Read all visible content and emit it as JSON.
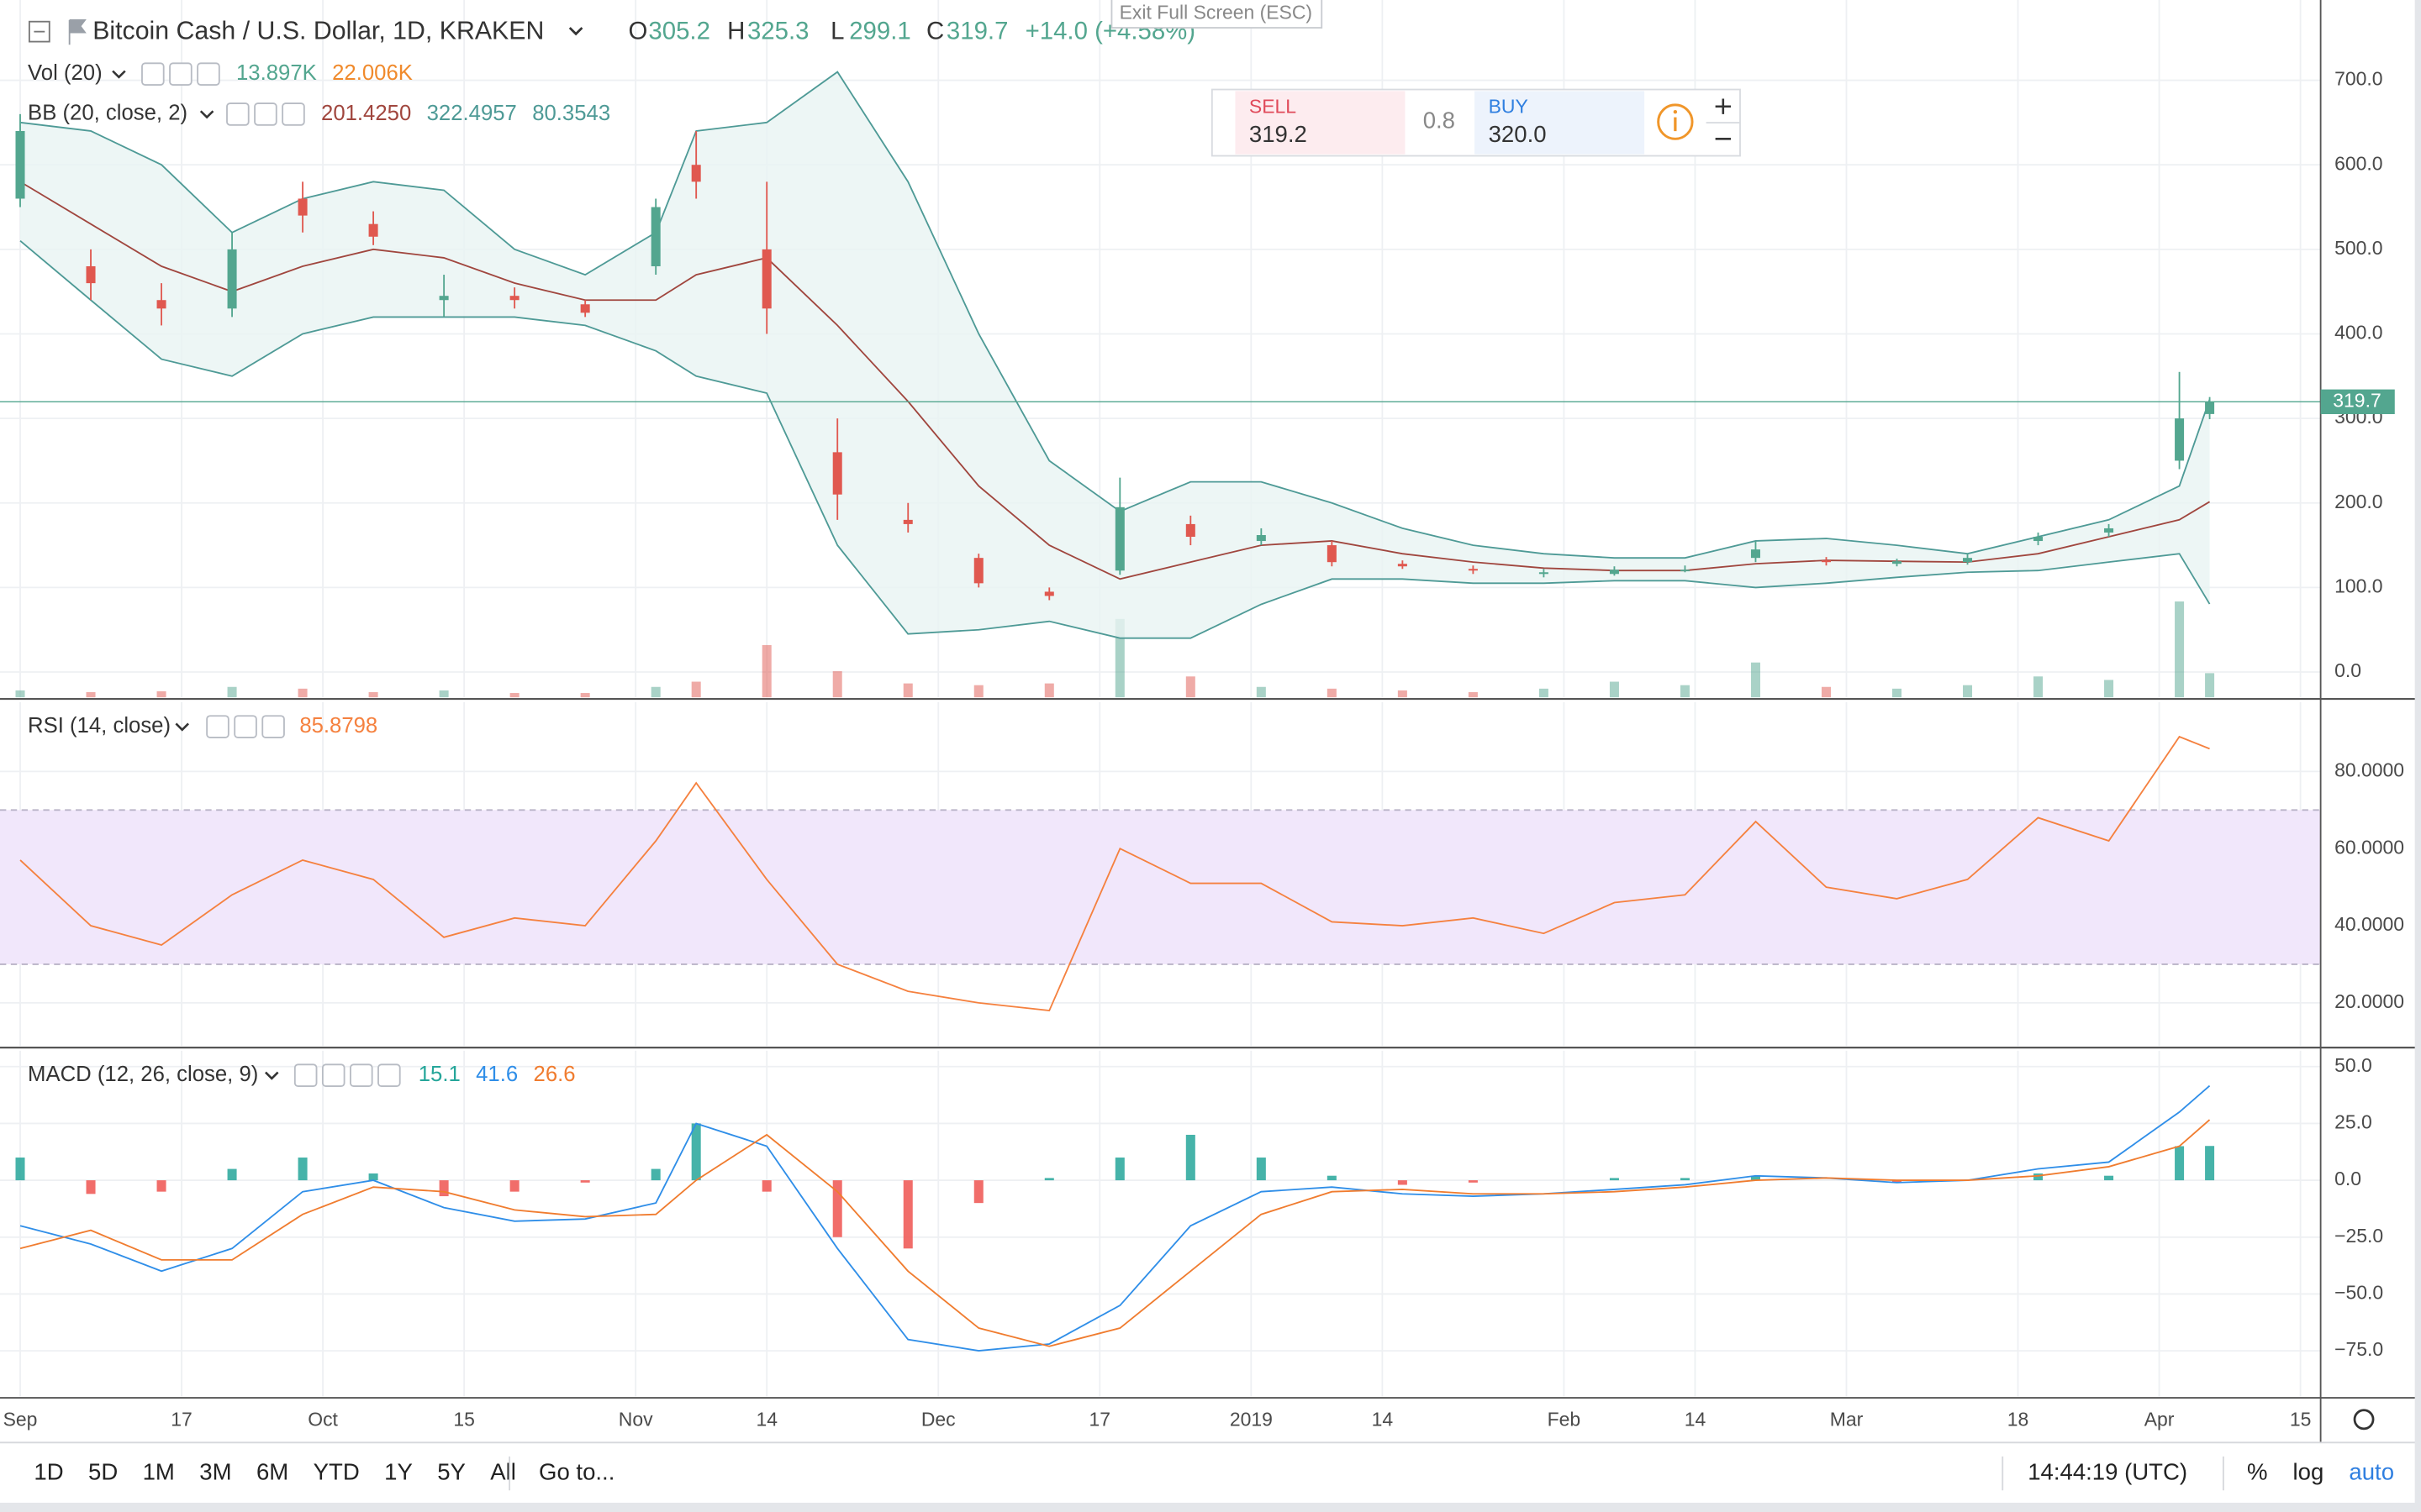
{
  "header": {
    "title": "Bitcoin Cash / U.S. Dollar, 1D, KRAKEN",
    "ohlc": [
      {
        "label": "O",
        "value": 305.2
      },
      {
        "label": "H",
        "value": 325.3
      },
      {
        "label": "L",
        "value": 299.1
      },
      {
        "label": "C",
        "value": 319.7
      }
    ],
    "change": "+14.0 (+4.58%)"
  },
  "exit_fullscreen": "Exit Full Screen (ESC)",
  "trade_widget": {
    "sell_label": "SELL",
    "sell_price": 319.2,
    "spread": 0.8,
    "buy_label": "BUY",
    "buy_price": {
      "value": 320,
      "label": "320.0"
    }
  },
  "chart_data": [
    {
      "type": "candlestick",
      "x": [
        "2018-09-01",
        "2018-09-08",
        "2018-09-15",
        "2018-09-22",
        "2018-09-29",
        "2018-10-06",
        "2018-10-13",
        "2018-10-20",
        "2018-10-27",
        "2018-11-03",
        "2018-11-07",
        "2018-11-14",
        "2018-11-21",
        "2018-11-28",
        "2018-12-05",
        "2018-12-12",
        "2018-12-19",
        "2018-12-26",
        "2019-01-02",
        "2019-01-09",
        "2019-01-16",
        "2019-01-23",
        "2019-01-30",
        "2019-02-06",
        "2019-02-13",
        "2019-02-20",
        "2019-02-27",
        "2019-03-06",
        "2019-03-13",
        "2019-03-20",
        "2019-03-27",
        "2019-04-03",
        "2019-04-06"
      ],
      "open": [
        560,
        480,
        440,
        430,
        560,
        530,
        440,
        445,
        435,
        480,
        600,
        500,
        260,
        180,
        135,
        95,
        120,
        175,
        155,
        150,
        128,
        122,
        116,
        116,
        120,
        135,
        132,
        128,
        130,
        155,
        165,
        250,
        305.2
      ],
      "high": [
        660,
        500,
        460,
        520,
        580,
        545,
        470,
        455,
        440,
        560,
        640,
        580,
        300,
        200,
        140,
        100,
        230,
        185,
        170,
        155,
        132,
        126,
        122,
        125,
        126,
        155,
        136,
        134,
        140,
        165,
        175,
        355,
        325.3
      ],
      "low": [
        550,
        440,
        410,
        420,
        520,
        505,
        420,
        430,
        420,
        470,
        560,
        400,
        180,
        165,
        100,
        85,
        115,
        150,
        150,
        125,
        122,
        116,
        112,
        114,
        118,
        130,
        126,
        125,
        127,
        150,
        160,
        240,
        299.1
      ],
      "close": [
        640,
        460,
        430,
        500,
        540,
        515,
        445,
        440,
        425,
        550,
        580,
        430,
        210,
        175,
        105,
        90,
        195,
        160,
        162,
        130,
        125,
        120,
        118,
        121,
        121,
        145,
        130,
        131,
        135,
        160,
        170,
        300,
        319.7
      ],
      "up_color": "#53a68f",
      "down_color": "#e0584f",
      "ylim": [
        -30,
        795
      ],
      "yticks": [
        {
          "value": 0,
          "label": "0.0"
        },
        {
          "value": 100,
          "label": "100.0"
        },
        {
          "value": 200,
          "label": "200.0"
        },
        {
          "value": 300,
          "label": "300.0"
        },
        {
          "value": 400,
          "label": "400.0"
        },
        {
          "value": 500,
          "label": "500.0"
        },
        {
          "value": 600,
          "label": "600.0"
        },
        {
          "value": 700,
          "label": "700.0"
        }
      ],
      "xlim": [
        "2018-08-30",
        "2019-04-17"
      ],
      "last_price": 319.7,
      "volume": {
        "name": "Vol (20)",
        "values": [
          4000,
          3000,
          3500,
          6000,
          5000,
          3000,
          4000,
          2500,
          2500,
          6000,
          9000,
          30000,
          15000,
          8000,
          7000,
          8000,
          45000,
          12000,
          6000,
          5000,
          4000,
          3000,
          5000,
          9000,
          7000,
          20000,
          6000,
          5000,
          7000,
          12000,
          10000,
          55000,
          13897
        ],
        "ylim": [
          0,
          400000
        ],
        "legend": [
          {
            "value": 13897,
            "label": "13.897K"
          },
          {
            "value": 22006,
            "label": "22.006K"
          }
        ],
        "legend_colors": [
          "#53a68f",
          "#f08a2c"
        ]
      },
      "bollinger": {
        "name": "BB (20, close, 2)",
        "basis": [
          580,
          530,
          480,
          450,
          480,
          500,
          490,
          460,
          440,
          440,
          470,
          490,
          410,
          320,
          220,
          150,
          110,
          130,
          150,
          155,
          140,
          130,
          123,
          120,
          120,
          128,
          132,
          131,
          130,
          140,
          160,
          180,
          201.425
        ],
        "upper": [
          650,
          640,
          600,
          520,
          560,
          580,
          570,
          500,
          470,
          520,
          640,
          650,
          710,
          580,
          400,
          250,
          190,
          225,
          225,
          200,
          170,
          150,
          140,
          135,
          135,
          155,
          158,
          150,
          140,
          160,
          180,
          220,
          322.4957
        ],
        "lower": [
          510,
          440,
          370,
          350,
          400,
          420,
          420,
          420,
          410,
          380,
          350,
          330,
          150,
          45,
          50,
          60,
          40,
          40,
          80,
          110,
          110,
          105,
          105,
          108,
          108,
          100,
          105,
          112,
          118,
          120,
          130,
          140,
          80.3543
        ],
        "color": "#4e9a96",
        "basis_color": "#a0463e",
        "fill": "#e9f4f2",
        "legend": [
          {
            "value": 201.425,
            "label": "201.4250"
          },
          322.4957,
          80.3543
        ],
        "legend_colors": [
          "#a0463e",
          "#4e9a96",
          "#4e9a96"
        ]
      }
    },
    {
      "type": "line",
      "x": [
        "2018-09-01",
        "2018-09-08",
        "2018-09-15",
        "2018-09-22",
        "2018-09-29",
        "2018-10-06",
        "2018-10-13",
        "2018-10-20",
        "2018-10-27",
        "2018-11-03",
        "2018-11-07",
        "2018-11-14",
        "2018-11-21",
        "2018-11-28",
        "2018-12-05",
        "2018-12-12",
        "2018-12-19",
        "2018-12-26",
        "2019-01-02",
        "2019-01-09",
        "2019-01-16",
        "2019-01-23",
        "2019-01-30",
        "2019-02-06",
        "2019-02-13",
        "2019-02-20",
        "2019-02-27",
        "2019-03-06",
        "2019-03-13",
        "2019-03-20",
        "2019-03-27",
        "2019-04-03",
        "2019-04-06"
      ],
      "series": [
        {
          "name": "RSI (14, close)",
          "color": "#f5813f",
          "values": [
            57,
            40,
            35,
            48,
            57,
            52,
            37,
            42,
            40,
            62,
            77,
            52,
            30,
            23,
            20,
            18,
            60,
            51,
            51,
            41,
            40,
            42,
            38,
            46,
            48,
            67,
            50,
            47,
            52,
            68,
            62,
            89,
            85.8798
          ]
        }
      ],
      "legend": [
        85.8798
      ],
      "band": [
        30,
        70
      ],
      "band_color": "#f1e7fb",
      "ylim": [
        8.8,
        98
      ],
      "yticks": [
        {
          "value": 20,
          "label": "20.0000"
        },
        {
          "value": 40,
          "label": "40.0000"
        },
        {
          "value": 60,
          "label": "60.0000"
        },
        {
          "value": 80,
          "label": "80.0000"
        }
      ],
      "xlim": [
        "2018-08-30",
        "2019-04-17"
      ]
    },
    {
      "type": "combo",
      "name": "MACD (12, 26, close, 9)",
      "x": [
        "2018-09-01",
        "2018-09-08",
        "2018-09-15",
        "2018-09-22",
        "2018-09-29",
        "2018-10-06",
        "2018-10-13",
        "2018-10-20",
        "2018-10-27",
        "2018-11-03",
        "2018-11-07",
        "2018-11-14",
        "2018-11-21",
        "2018-11-28",
        "2018-12-05",
        "2018-12-12",
        "2018-12-19",
        "2018-12-26",
        "2019-01-02",
        "2019-01-09",
        "2019-01-16",
        "2019-01-23",
        "2019-01-30",
        "2019-02-06",
        "2019-02-13",
        "2019-02-20",
        "2019-02-27",
        "2019-03-06",
        "2019-03-13",
        "2019-03-20",
        "2019-03-27",
        "2019-04-03",
        "2019-04-06"
      ],
      "histogram": {
        "values": [
          10,
          -6,
          -5,
          5,
          10,
          3,
          -7,
          -5,
          -1,
          5,
          25,
          -5,
          -25,
          -30,
          -10,
          1,
          10,
          20,
          10,
          2,
          -2,
          -1,
          0,
          1,
          1,
          2,
          0,
          -1,
          0,
          3,
          2,
          15,
          15.1
        ],
        "up_color": "#26a69a",
        "down_color": "#ef5350"
      },
      "series": [
        {
          "color": "#2f8ee8",
          "values": [
            -20,
            -28,
            -40,
            -30,
            -5,
            0,
            -12,
            -18,
            -17,
            -10,
            25,
            15,
            -30,
            -70,
            -75,
            -72,
            -55,
            -20,
            -5,
            -3,
            -6,
            -7,
            -6,
            -4,
            -2,
            2,
            1,
            -1,
            0,
            5,
            8,
            30,
            41.6
          ]
        },
        {
          "color": "#f07c2f",
          "values": [
            -30,
            -22,
            -35,
            -35,
            -15,
            -3,
            -5,
            -13,
            -16,
            -15,
            0,
            20,
            -5,
            -40,
            -65,
            -73,
            -65,
            -40,
            -15,
            -5,
            -4,
            -6,
            -6,
            -5,
            -3,
            0,
            1,
            0,
            0,
            2,
            6,
            15,
            26.6
          ]
        }
      ],
      "legend": [
        15.1,
        41.6,
        26.6
      ],
      "ylim": [
        -95,
        57
      ],
      "yticks": [
        {
          "value": 50,
          "label": "50.0"
        },
        {
          "value": 25,
          "label": "25.0"
        },
        {
          "value": 0,
          "label": "0.0"
        },
        {
          "value": -25,
          "label": "−25.0"
        },
        {
          "value": -50,
          "label": "−50.0"
        },
        {
          "value": -75,
          "label": "−75.0"
        }
      ],
      "xlim": [
        "2018-08-30",
        "2019-04-17"
      ],
      "xticks": [
        {
          "value": "2018-09-01",
          "label": "Sep"
        },
        {
          "value": "2018-09-17",
          "label": "17"
        },
        {
          "value": "2018-10-01",
          "label": "Oct"
        },
        {
          "value": "2018-10-15",
          "label": "15"
        },
        {
          "value": "2018-11-01",
          "label": "Nov"
        },
        {
          "value": "2018-11-14",
          "label": "14"
        },
        {
          "value": "2018-12-01",
          "label": "Dec"
        },
        {
          "value": "2018-12-17",
          "label": "17"
        },
        {
          "value": "2019-01-01",
          "label": "2019"
        },
        {
          "value": "2019-01-14",
          "label": "14"
        },
        {
          "value": "2019-02-01",
          "label": "Feb"
        },
        {
          "value": "2019-02-14",
          "label": "14"
        },
        {
          "value": "2019-03-01",
          "label": "Mar"
        },
        {
          "value": "2019-03-18",
          "label": "18"
        },
        {
          "value": "2019-04-01",
          "label": "Apr"
        },
        {
          "value": "2019-04-15",
          "label": "15"
        }
      ]
    }
  ],
  "toolbar": {
    "ranges": [
      "1D",
      "5D",
      "1M",
      "3M",
      "6M",
      "YTD",
      "1Y",
      "5Y",
      "All"
    ],
    "goto": "Go to...",
    "time": "14:44:19 (UTC)",
    "options": [
      "%",
      "log",
      "auto"
    ]
  }
}
